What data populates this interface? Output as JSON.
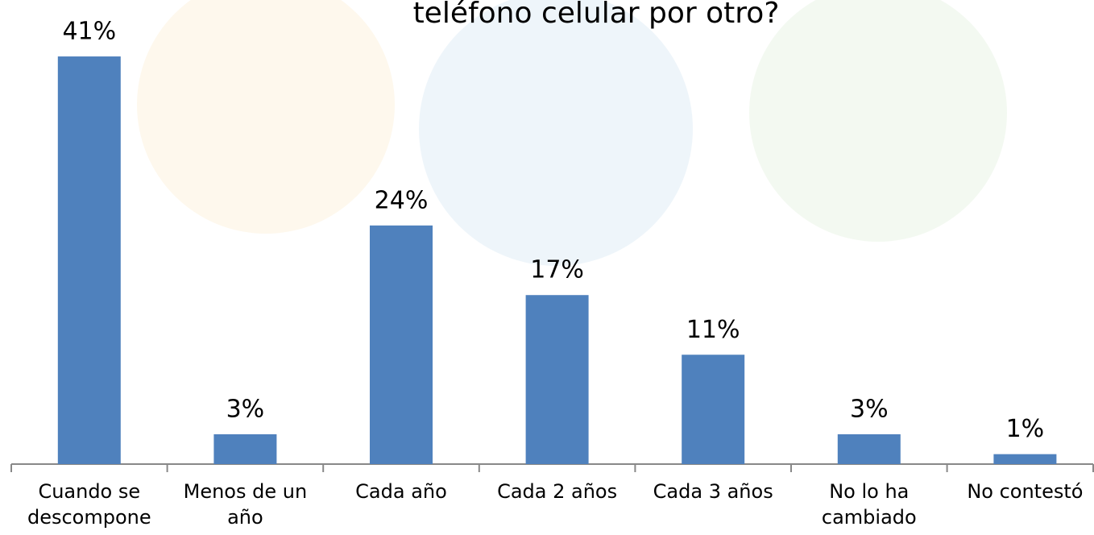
{
  "chart_data": {
    "type": "bar",
    "title": "teléfono celular por otro?",
    "categories": [
      "Cuando se descompone",
      "Menos de un año",
      "Cada año",
      "Cada 2 años",
      "Cada 3 años",
      "No lo ha cambiado",
      "No contestó"
    ],
    "values": [
      41,
      3,
      24,
      17,
      11,
      3,
      1
    ],
    "value_labels": [
      "41%",
      "3%",
      "24%",
      "17%",
      "11%",
      "3%",
      "1%"
    ],
    "color": "#4f81bd"
  }
}
